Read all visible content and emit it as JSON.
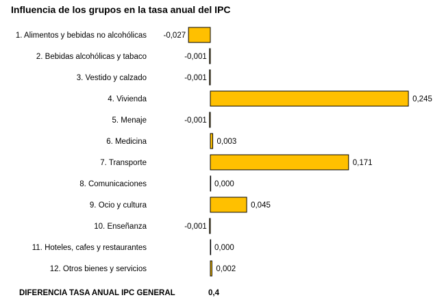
{
  "chart_data": {
    "type": "bar",
    "orientation": "horizontal",
    "title": "Influencia de los grupos en la tasa anual del IPC",
    "categories": [
      "1. Alimentos y bebidas no alcohólicas",
      "2. Bebidas alcohólicas y tabaco",
      "3. Vestido y calzado",
      "4. Vivienda",
      "5. Menaje",
      "6. Medicina",
      "7. Transporte",
      "8. Comunicaciones",
      "9. Ocio y cultura",
      "10. Enseñanza",
      "11. Hoteles, cafes y restaurantes",
      "12. Otros bienes y servicios"
    ],
    "values": [
      -0.027,
      -0.001,
      -0.001,
      0.245,
      -0.001,
      0.003,
      0.171,
      0.0,
      0.045,
      -0.001,
      0.0,
      0.002
    ],
    "value_labels": [
      "-0,027",
      "-0,001",
      "-0,001",
      "0,245",
      "-0,001",
      "0,003",
      "0,171",
      "0,000",
      "0,045",
      "-0,001",
      "0,000",
      "0,002"
    ],
    "bar_color": "#FFC000",
    "bar_border_color": "#000000",
    "grid": false,
    "legend": "none"
  },
  "footer": {
    "label": "DIFERENCIA TASA ANUAL IPC GENERAL",
    "value": "0,4"
  }
}
